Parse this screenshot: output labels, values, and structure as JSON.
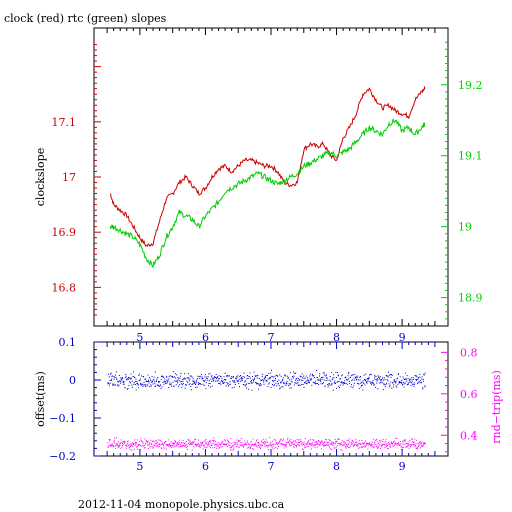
{
  "page": {
    "title": "clock (red) rtc (green) slopes",
    "footer": "2012-11-04 monopole.physics.ubc.ca"
  },
  "colors": {
    "clock": "#cc0000",
    "rtc": "#00cc00",
    "offset": "#0000cc",
    "rnd_trip": "#ff00ff",
    "axis": "#000000"
  },
  "chart_data": [
    {
      "type": "line",
      "title": "clock (red) rtc (green) slopes",
      "ylabel": "clockslope",
      "xlim": [
        4.3,
        9.7
      ],
      "ylim": [
        16.73,
        17.27
      ],
      "x_ticks": [
        5,
        6,
        7,
        8,
        9
      ],
      "y_ticks": [
        16.8,
        16.9,
        17,
        17.1
      ],
      "y_tick_labels": [
        "16.8",
        "16.9",
        "17",
        "17.1"
      ],
      "y2lim": [
        18.86,
        19.28
      ],
      "y2_ticks": [
        18.9,
        19,
        19.1,
        19.2
      ],
      "y2_tick_labels": [
        "18.9",
        "19",
        "19.1",
        "19.2"
      ],
      "series": [
        {
          "name": "clock",
          "axis": "left",
          "x": [
            4.55,
            4.6,
            4.7,
            4.8,
            4.9,
            5.0,
            5.1,
            5.2,
            5.3,
            5.4,
            5.5,
            5.6,
            5.7,
            5.8,
            5.9,
            6.0,
            6.1,
            6.2,
            6.3,
            6.4,
            6.5,
            6.6,
            6.7,
            6.8,
            6.9,
            7.0,
            7.1,
            7.2,
            7.3,
            7.4,
            7.5,
            7.6,
            7.7,
            7.8,
            7.9,
            8.0,
            8.1,
            8.2,
            8.3,
            8.4,
            8.5,
            8.6,
            8.7,
            8.8,
            8.9,
            9.0,
            9.1,
            9.2,
            9.3,
            9.35
          ],
          "y": [
            16.97,
            16.95,
            16.94,
            16.93,
            16.91,
            16.89,
            16.875,
            16.88,
            16.92,
            16.96,
            16.97,
            16.99,
            17.0,
            16.985,
            16.97,
            16.98,
            17.0,
            17.015,
            17.02,
            17.01,
            17.02,
            17.03,
            17.03,
            17.025,
            17.02,
            17.02,
            17.01,
            16.99,
            16.985,
            16.99,
            17.05,
            17.06,
            17.055,
            17.06,
            17.04,
            17.03,
            17.07,
            17.09,
            17.115,
            17.15,
            17.16,
            17.14,
            17.125,
            17.13,
            17.12,
            17.115,
            17.11,
            17.14,
            17.155,
            17.16
          ]
        },
        {
          "name": "rtc",
          "axis": "right",
          "x": [
            4.55,
            4.6,
            4.7,
            4.8,
            4.9,
            5.0,
            5.1,
            5.2,
            5.3,
            5.4,
            5.5,
            5.6,
            5.7,
            5.8,
            5.9,
            6.0,
            6.1,
            6.2,
            6.3,
            6.4,
            6.5,
            6.6,
            6.7,
            6.8,
            6.9,
            7.0,
            7.1,
            7.2,
            7.3,
            7.4,
            7.5,
            7.6,
            7.7,
            7.8,
            7.9,
            8.0,
            8.1,
            8.2,
            8.3,
            8.4,
            8.5,
            8.6,
            8.7,
            8.8,
            8.9,
            9.0,
            9.1,
            9.2,
            9.3,
            9.35
          ],
          "y": [
            19.0,
            19.0,
            18.995,
            18.99,
            18.985,
            18.975,
            18.955,
            18.945,
            18.96,
            18.985,
            19.0,
            19.02,
            19.015,
            19.01,
            19.0,
            19.015,
            19.025,
            19.035,
            19.05,
            19.055,
            19.06,
            19.065,
            19.07,
            19.075,
            19.07,
            19.065,
            19.06,
            19.065,
            19.07,
            19.075,
            19.085,
            19.09,
            19.095,
            19.1,
            19.105,
            19.1,
            19.105,
            19.11,
            19.12,
            19.13,
            19.14,
            19.135,
            19.13,
            19.145,
            19.15,
            19.135,
            19.14,
            19.13,
            19.14,
            19.145
          ]
        }
      ]
    },
    {
      "type": "scatter",
      "ylabel": "offset(ms)",
      "y2label": "rnd−trip(ms)",
      "xlim": [
        4.3,
        9.7
      ],
      "ylim": [
        -0.2,
        0.1
      ],
      "x_ticks": [
        5,
        6,
        7,
        8,
        9
      ],
      "y_ticks": [
        -0.2,
        -0.1,
        0,
        0.1
      ],
      "y_tick_labels": [
        "−0.2",
        "−0.1",
        "0",
        "0.1"
      ],
      "y2lim": [
        0.3,
        0.85
      ],
      "y2_ticks": [
        0.4,
        0.6,
        0.8
      ],
      "y2_tick_labels": [
        "0.4",
        "0.6",
        "0.8"
      ],
      "series": [
        {
          "name": "offset",
          "axis": "left",
          "x_range": [
            4.5,
            9.35
          ],
          "center": 0.0,
          "spread": 0.01
        },
        {
          "name": "rnd-trip",
          "axis": "right",
          "x_range": [
            4.5,
            9.35
          ],
          "center": 0.36,
          "spread": 0.012
        }
      ]
    }
  ]
}
